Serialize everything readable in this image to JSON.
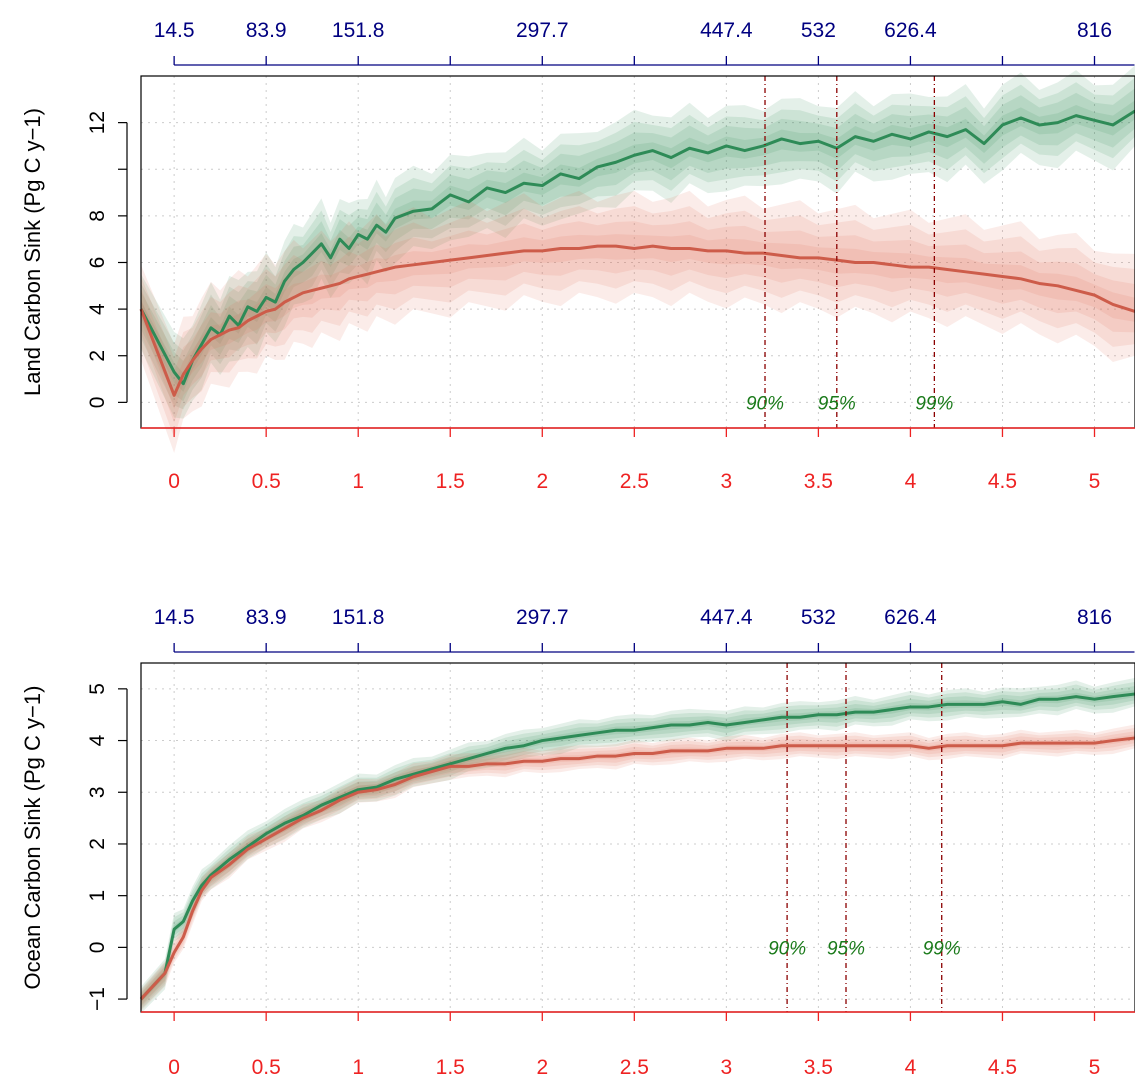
{
  "chart_data": [
    {
      "type": "line",
      "ylabel": "Land Carbon Sink (Pg C y−1)",
      "xlim": [
        -0.18,
        5.22
      ],
      "ylim": [
        -1.1,
        14.0
      ],
      "bottom_ticks": [
        0,
        0.5,
        1,
        1.5,
        2,
        2.5,
        3,
        3.5,
        4,
        4.5,
        5
      ],
      "bottom_tick_labels": [
        "0",
        "0.5",
        "1",
        "1.5",
        "2",
        "2.5",
        "3",
        "3.5",
        "4",
        "4.5",
        "5"
      ],
      "top_ticks": [
        0,
        0.5,
        1,
        1.5,
        2,
        2.5,
        3,
        3.5,
        4,
        4.5,
        5
      ],
      "top_tick_labels": [
        "14.5",
        "83.9",
        "151.8",
        "",
        "297.7",
        "",
        "447.4",
        "532",
        "626.4",
        "",
        "816"
      ],
      "y_ticks": [
        0,
        2,
        4,
        6,
        8,
        10,
        12
      ],
      "y_tick_labels": [
        "0",
        "2",
        "4",
        "6",
        "8",
        "",
        "12"
      ],
      "grid": true,
      "percentiles": [
        {
          "label": "90%",
          "x": 3.21
        },
        {
          "label": "95%",
          "x": 3.6
        },
        {
          "label": "99%",
          "x": 4.13
        }
      ],
      "series": [
        {
          "color": "#2e8b57",
          "band_color": "#2e8b57",
          "band_widths": [
            0.35,
            0.75,
            1.1,
            1.5
          ],
          "x": [
            -0.18,
            0.0,
            0.05,
            0.1,
            0.15,
            0.2,
            0.25,
            0.3,
            0.35,
            0.4,
            0.45,
            0.5,
            0.55,
            0.6,
            0.65,
            0.7,
            0.75,
            0.8,
            0.85,
            0.9,
            0.95,
            1.0,
            1.05,
            1.1,
            1.15,
            1.2,
            1.3,
            1.4,
            1.5,
            1.6,
            1.7,
            1.8,
            1.9,
            2.0,
            2.1,
            2.2,
            2.3,
            2.4,
            2.5,
            2.6,
            2.7,
            2.8,
            2.9,
            3.0,
            3.1,
            3.2,
            3.3,
            3.4,
            3.5,
            3.6,
            3.7,
            3.8,
            3.9,
            4.0,
            4.1,
            4.2,
            4.3,
            4.4,
            4.5,
            4.6,
            4.7,
            4.8,
            4.9,
            5.0,
            5.1,
            5.22
          ],
          "y": [
            4.0,
            1.3,
            0.8,
            1.8,
            2.5,
            3.2,
            2.9,
            3.7,
            3.3,
            4.1,
            3.9,
            4.5,
            4.3,
            5.2,
            5.7,
            6.0,
            6.4,
            6.8,
            6.2,
            7.0,
            6.6,
            7.2,
            7.0,
            7.6,
            7.3,
            7.9,
            8.2,
            8.3,
            8.9,
            8.6,
            9.2,
            9.0,
            9.4,
            9.3,
            9.8,
            9.6,
            10.1,
            10.3,
            10.6,
            10.8,
            10.5,
            10.9,
            10.7,
            11.0,
            10.8,
            11.0,
            11.3,
            11.1,
            11.2,
            10.9,
            11.4,
            11.2,
            11.5,
            11.3,
            11.6,
            11.4,
            11.7,
            11.1,
            11.9,
            12.2,
            11.9,
            12.0,
            12.3,
            12.1,
            11.9,
            12.5
          ]
        },
        {
          "color": "#cd5c4a",
          "band_color": "#dd6b55",
          "band_widths": [
            0.45,
            0.9,
            1.4,
            1.9
          ],
          "x": [
            -0.18,
            0.0,
            0.05,
            0.1,
            0.15,
            0.2,
            0.25,
            0.3,
            0.35,
            0.4,
            0.45,
            0.5,
            0.55,
            0.6,
            0.65,
            0.7,
            0.75,
            0.8,
            0.85,
            0.9,
            0.95,
            1.0,
            1.05,
            1.1,
            1.15,
            1.2,
            1.3,
            1.4,
            1.5,
            1.6,
            1.7,
            1.8,
            1.9,
            2.0,
            2.1,
            2.2,
            2.3,
            2.4,
            2.5,
            2.6,
            2.7,
            2.8,
            2.9,
            3.0,
            3.1,
            3.2,
            3.3,
            3.4,
            3.5,
            3.6,
            3.7,
            3.8,
            3.9,
            4.0,
            4.1,
            4.2,
            4.3,
            4.4,
            4.5,
            4.6,
            4.7,
            4.8,
            4.9,
            5.0,
            5.1,
            5.22
          ],
          "y": [
            4.0,
            0.3,
            1.2,
            1.8,
            2.3,
            2.7,
            2.9,
            3.1,
            3.2,
            3.5,
            3.7,
            3.9,
            4.0,
            4.3,
            4.5,
            4.7,
            4.8,
            4.9,
            5.0,
            5.1,
            5.3,
            5.4,
            5.5,
            5.6,
            5.7,
            5.8,
            5.9,
            6.0,
            6.1,
            6.2,
            6.3,
            6.4,
            6.5,
            6.5,
            6.6,
            6.6,
            6.7,
            6.7,
            6.6,
            6.7,
            6.6,
            6.6,
            6.5,
            6.5,
            6.4,
            6.4,
            6.3,
            6.2,
            6.2,
            6.1,
            6.0,
            6.0,
            5.9,
            5.8,
            5.8,
            5.7,
            5.6,
            5.5,
            5.4,
            5.3,
            5.1,
            5.0,
            4.8,
            4.6,
            4.2,
            3.9
          ]
        }
      ]
    },
    {
      "type": "line",
      "ylabel": "Ocean Carbon Sink (Pg C y−1)",
      "xlim": [
        -0.18,
        5.22
      ],
      "ylim": [
        -1.25,
        5.5
      ],
      "bottom_ticks": [
        0,
        0.5,
        1,
        1.5,
        2,
        2.5,
        3,
        3.5,
        4,
        4.5,
        5
      ],
      "bottom_tick_labels": [
        "0",
        "0.5",
        "1",
        "1.5",
        "2",
        "2.5",
        "3",
        "3.5",
        "4",
        "4.5",
        "5"
      ],
      "top_ticks": [
        0,
        0.5,
        1,
        1.5,
        2,
        2.5,
        3,
        3.5,
        4,
        4.5,
        5
      ],
      "top_tick_labels": [
        "14.5",
        "83.9",
        "151.8",
        "",
        "297.7",
        "",
        "447.4",
        "532",
        "626.4",
        "",
        "816"
      ],
      "y_ticks": [
        -1,
        0,
        1,
        2,
        3,
        4,
        5
      ],
      "y_tick_labels": [
        "−1",
        "0",
        "1",
        "2",
        "3",
        "4",
        "5"
      ],
      "grid": true,
      "percentiles": [
        {
          "label": "90%",
          "x": 3.33
        },
        {
          "label": "95%",
          "x": 3.65
        },
        {
          "label": "99%",
          "x": 4.17
        }
      ],
      "series": [
        {
          "color": "#2e8b57",
          "band_color": "#2e8b57",
          "band_widths": [
            0.06,
            0.12,
            0.18,
            0.24
          ],
          "x": [
            -0.18,
            -0.05,
            0.0,
            0.05,
            0.1,
            0.15,
            0.2,
            0.3,
            0.4,
            0.5,
            0.6,
            0.7,
            0.8,
            0.9,
            1.0,
            1.1,
            1.2,
            1.3,
            1.4,
            1.5,
            1.6,
            1.7,
            1.8,
            1.9,
            2.0,
            2.1,
            2.2,
            2.3,
            2.4,
            2.5,
            2.6,
            2.7,
            2.8,
            2.9,
            3.0,
            3.1,
            3.2,
            3.3,
            3.4,
            3.5,
            3.6,
            3.7,
            3.8,
            3.9,
            4.0,
            4.1,
            4.2,
            4.3,
            4.4,
            4.5,
            4.6,
            4.7,
            4.8,
            4.9,
            5.0,
            5.1,
            5.22
          ],
          "y": [
            -1.0,
            -0.5,
            0.35,
            0.5,
            0.9,
            1.2,
            1.4,
            1.7,
            1.95,
            2.2,
            2.4,
            2.55,
            2.75,
            2.9,
            3.05,
            3.1,
            3.25,
            3.35,
            3.45,
            3.55,
            3.65,
            3.75,
            3.85,
            3.9,
            4.0,
            4.05,
            4.1,
            4.15,
            4.2,
            4.2,
            4.25,
            4.3,
            4.3,
            4.35,
            4.3,
            4.35,
            4.4,
            4.45,
            4.45,
            4.5,
            4.5,
            4.55,
            4.55,
            4.6,
            4.65,
            4.65,
            4.7,
            4.7,
            4.7,
            4.75,
            4.7,
            4.8,
            4.8,
            4.85,
            4.8,
            4.85,
            4.9
          ]
        },
        {
          "color": "#cd5c4a",
          "band_color": "#dd6b55",
          "band_widths": [
            0.05,
            0.1,
            0.15,
            0.2
          ],
          "x": [
            -0.18,
            -0.05,
            0.0,
            0.05,
            0.1,
            0.15,
            0.2,
            0.3,
            0.4,
            0.5,
            0.6,
            0.7,
            0.8,
            0.9,
            1.0,
            1.1,
            1.2,
            1.3,
            1.4,
            1.5,
            1.6,
            1.7,
            1.8,
            1.9,
            2.0,
            2.1,
            2.2,
            2.3,
            2.4,
            2.5,
            2.6,
            2.7,
            2.8,
            2.9,
            3.0,
            3.1,
            3.2,
            3.3,
            3.4,
            3.5,
            3.6,
            3.7,
            3.8,
            3.9,
            4.0,
            4.1,
            4.2,
            4.3,
            4.4,
            4.5,
            4.6,
            4.7,
            4.8,
            4.9,
            5.0,
            5.1,
            5.22
          ],
          "y": [
            -1.0,
            -0.5,
            -0.1,
            0.2,
            0.7,
            1.1,
            1.35,
            1.6,
            1.9,
            2.1,
            2.3,
            2.5,
            2.65,
            2.85,
            3.0,
            3.05,
            3.15,
            3.3,
            3.4,
            3.5,
            3.5,
            3.55,
            3.55,
            3.6,
            3.6,
            3.65,
            3.65,
            3.7,
            3.7,
            3.75,
            3.75,
            3.8,
            3.8,
            3.8,
            3.85,
            3.85,
            3.85,
            3.9,
            3.9,
            3.9,
            3.9,
            3.9,
            3.9,
            3.9,
            3.9,
            3.85,
            3.9,
            3.9,
            3.9,
            3.9,
            3.95,
            3.95,
            3.95,
            3.95,
            3.95,
            4.0,
            4.05
          ]
        }
      ]
    }
  ]
}
